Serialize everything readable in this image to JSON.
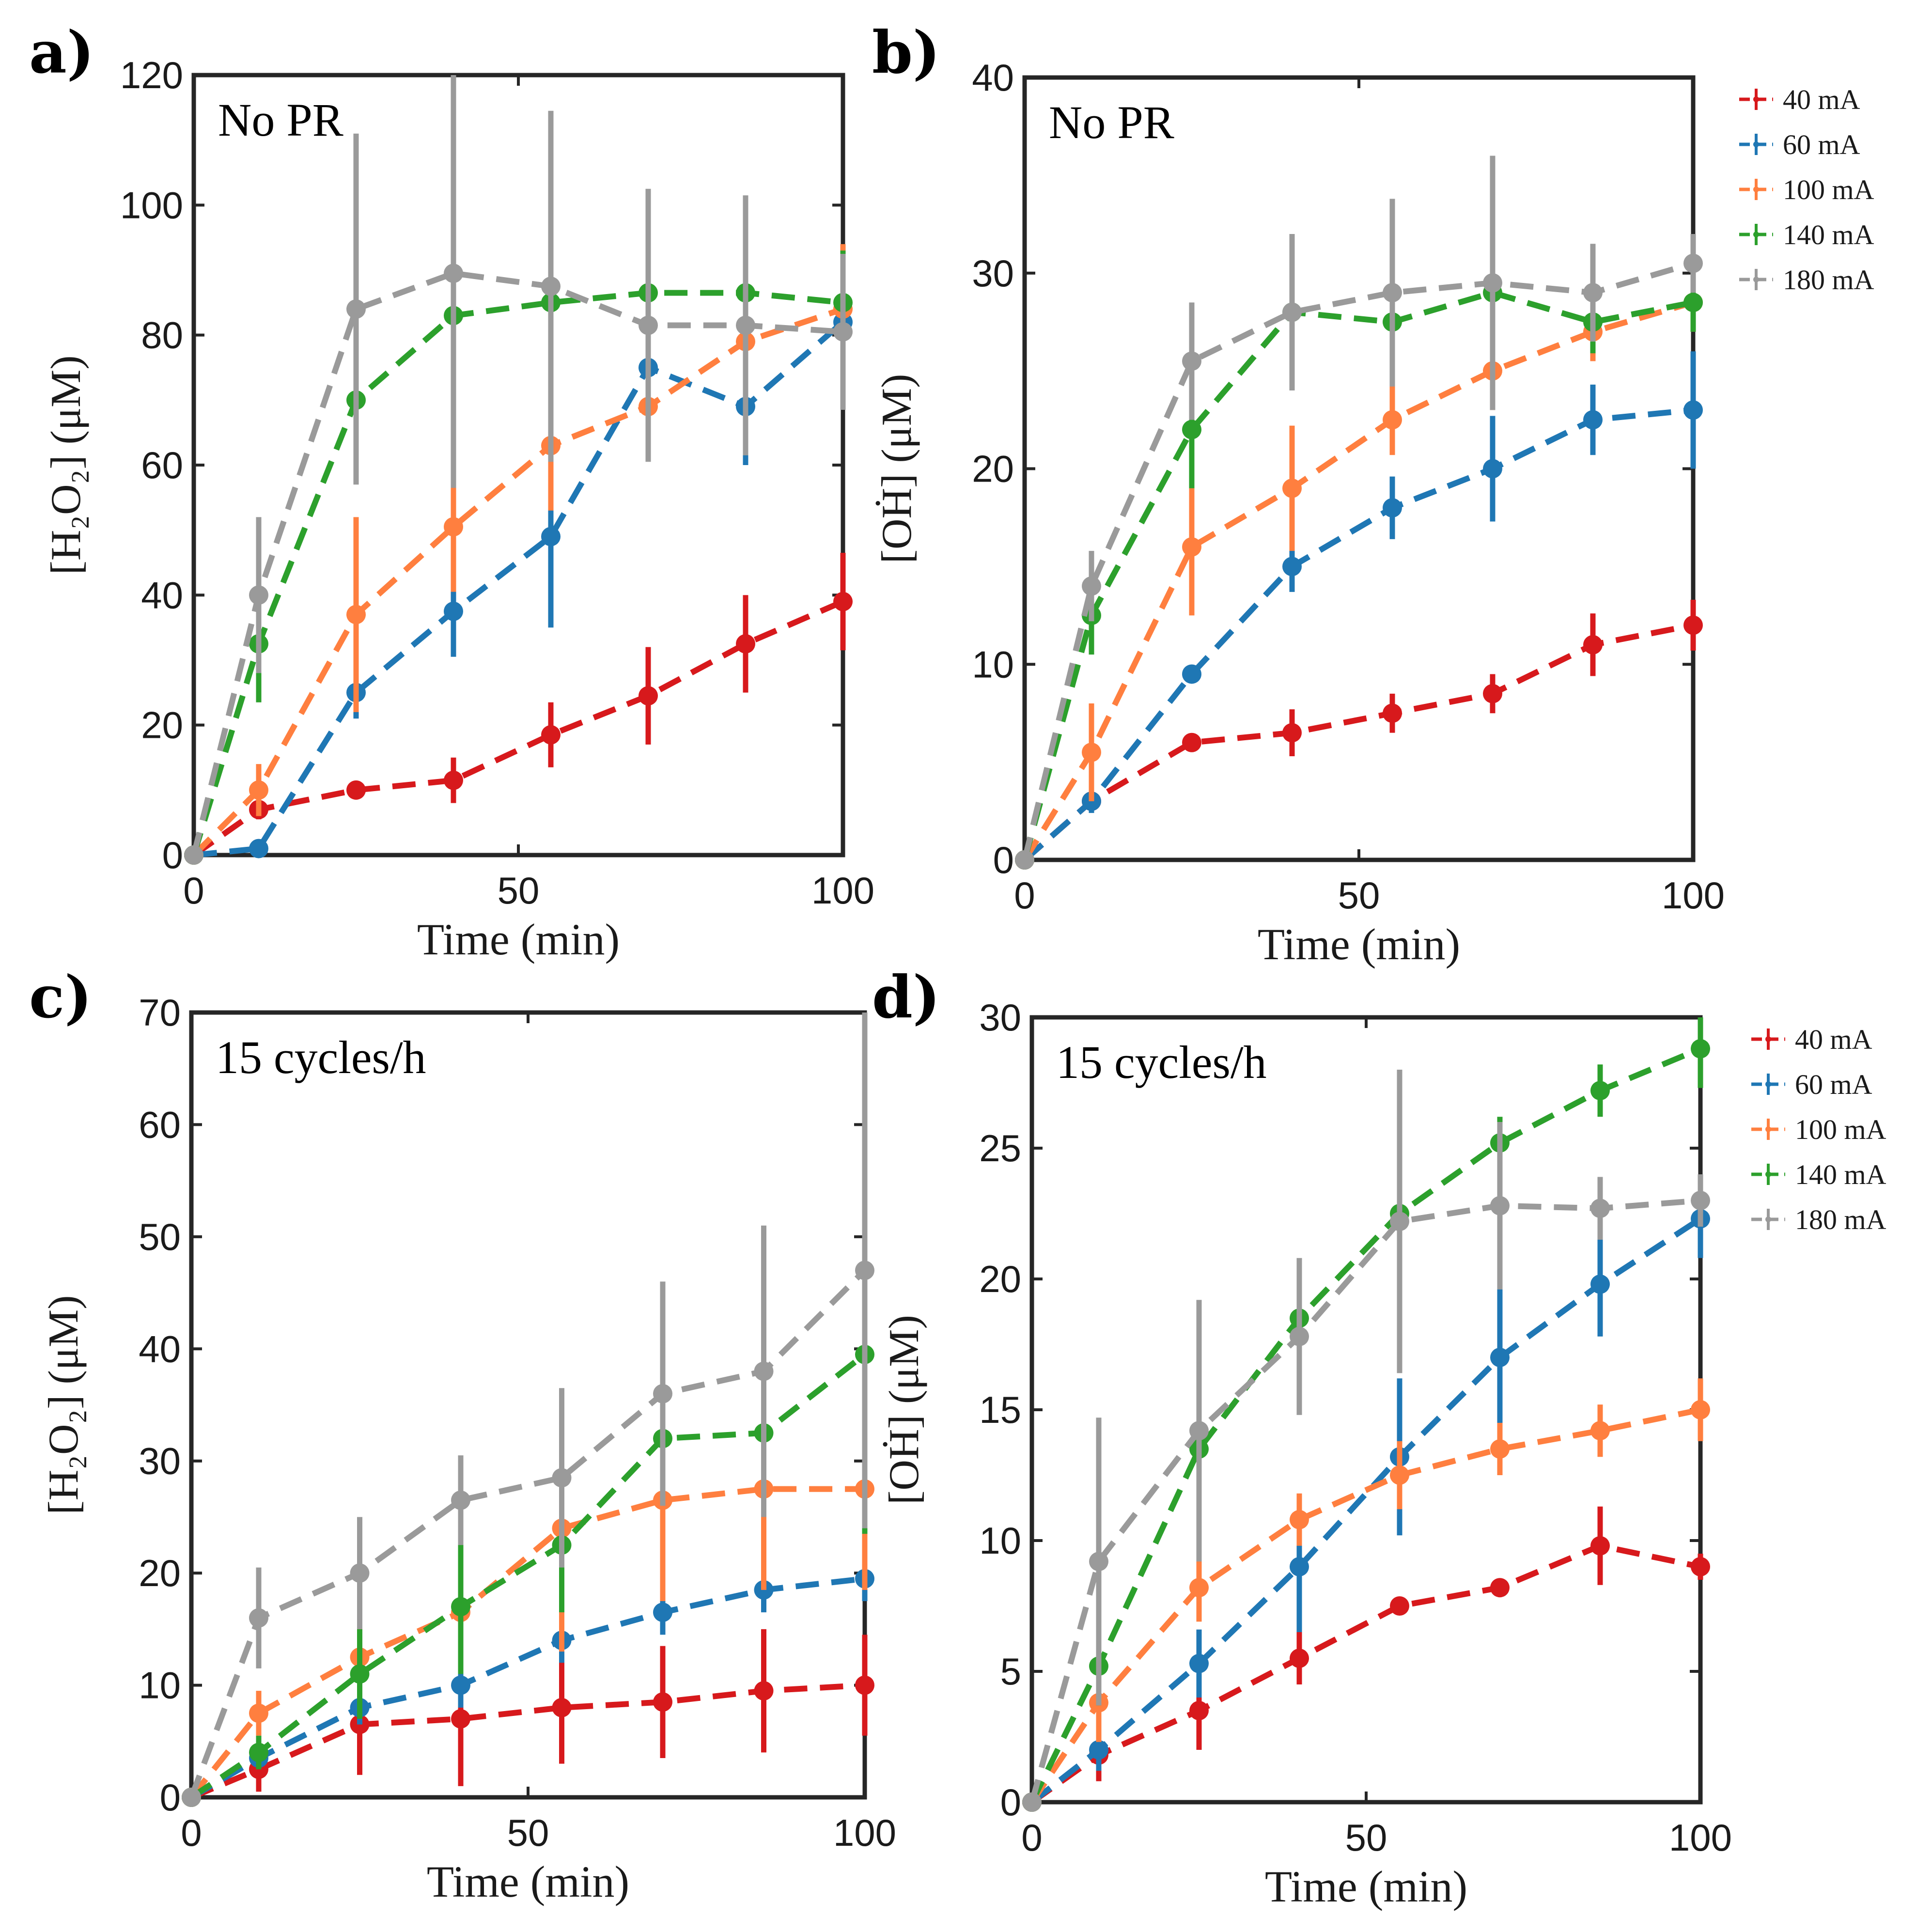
{
  "legend_entries": [
    "40 mA",
    "60 mA",
    "100 mA",
    "140 mA",
    "180 mA"
  ],
  "series_colors": {
    "40 mA": "#d7191c",
    "60 mA": "#1f77b4",
    "100 mA": "#ff7f3f",
    "140 mA": "#2ca02c",
    "180 mA": "#9a9a9a"
  },
  "chart_data": [
    {
      "type": "line",
      "panel": "a)",
      "annotation": "No PR",
      "xlabel": "Time (min)",
      "ylabel": "[H₂O₂] (μM)",
      "xlim": [
        0,
        100
      ],
      "ylim": [
        0,
        120
      ],
      "xticks": [
        0,
        50,
        100
      ],
      "yticks": [
        0,
        20,
        40,
        60,
        80,
        100,
        120
      ],
      "x": [
        0,
        10,
        25,
        40,
        55,
        70,
        85,
        100
      ],
      "series": [
        {
          "name": "40 mA",
          "values": [
            0,
            7,
            10,
            11.5,
            18.5,
            24.5,
            32.5,
            39
          ],
          "errors": [
            0,
            1.5,
            1,
            3.5,
            5,
            7.5,
            7.5,
            7.5
          ]
        },
        {
          "name": "60 mA",
          "values": [
            0,
            1,
            25,
            37.5,
            49,
            75,
            69,
            82
          ],
          "errors": [
            0,
            0.5,
            4,
            7,
            14,
            2,
            9,
            3
          ]
        },
        {
          "name": "100 mA",
          "values": [
            0,
            10,
            37,
            50.5,
            63,
            69,
            79,
            84
          ],
          "errors": [
            0,
            4,
            15,
            10,
            10,
            8,
            7,
            10
          ]
        },
        {
          "name": "140 mA",
          "values": [
            0,
            32.5,
            70,
            83,
            85,
            86.5,
            86.5,
            85
          ],
          "errors": [
            0,
            9,
            8,
            8,
            7,
            8,
            7,
            8
          ]
        },
        {
          "name": "180 mA",
          "values": [
            0,
            40,
            84,
            89.5,
            87.5,
            81.5,
            81.5,
            80.5
          ],
          "errors": [
            0,
            12,
            27,
            33,
            27,
            21,
            20,
            12
          ]
        }
      ]
    },
    {
      "type": "line",
      "panel": "b)",
      "annotation": "No PR",
      "xlabel": "Time (min)",
      "ylabel": "[OḢ] (μM)",
      "xlim": [
        0,
        100
      ],
      "ylim": [
        0,
        40
      ],
      "xticks": [
        0,
        50,
        100
      ],
      "yticks": [
        0,
        10,
        20,
        30,
        40
      ],
      "x": [
        0,
        10,
        25,
        40,
        55,
        70,
        85,
        100
      ],
      "series": [
        {
          "name": "40 mA",
          "values": [
            0,
            3,
            6,
            6.5,
            7.5,
            8.5,
            11,
            12
          ],
          "errors": [
            0,
            0.5,
            0.3,
            1.2,
            1,
            1,
            1.6,
            1.3
          ]
        },
        {
          "name": "60 mA",
          "values": [
            0,
            3,
            9.5,
            15,
            18,
            20,
            22.5,
            23
          ],
          "errors": [
            0,
            0.6,
            0.3,
            1.3,
            1.6,
            2.7,
            1.8,
            3
          ]
        },
        {
          "name": "100 mA",
          "values": [
            0,
            5.5,
            16,
            19,
            22.5,
            25,
            27,
            28.5
          ],
          "errors": [
            0,
            2.5,
            3.5,
            3.2,
            1.8,
            2,
            1.5,
            1.5
          ]
        },
        {
          "name": "140 mA",
          "values": [
            0,
            12.5,
            22,
            28,
            27.5,
            29,
            27.5,
            28.5
          ],
          "errors": [
            0,
            2,
            3,
            2,
            1.8,
            2,
            1.6,
            1.5
          ]
        },
        {
          "name": "180 mA",
          "values": [
            0,
            14,
            25.5,
            28,
            29,
            29.5,
            29,
            30.5
          ],
          "errors": [
            0,
            1.8,
            3,
            4,
            4.8,
            6.5,
            2.5,
            1.5
          ]
        }
      ]
    },
    {
      "type": "line",
      "panel": "c)",
      "annotation": "15 cycles/h",
      "xlabel": "Time (min)",
      "ylabel": "[H₂O₂] (μM)",
      "xlim": [
        0,
        100
      ],
      "ylim": [
        0,
        70
      ],
      "xticks": [
        0,
        50,
        100
      ],
      "yticks": [
        0,
        10,
        20,
        30,
        40,
        50,
        60,
        70
      ],
      "x": [
        0,
        10,
        25,
        40,
        55,
        70,
        85,
        100
      ],
      "series": [
        {
          "name": "40 mA",
          "values": [
            0,
            2.5,
            6.5,
            7,
            8,
            8.5,
            9.5,
            10
          ],
          "errors": [
            0,
            2,
            4.5,
            6,
            5,
            5,
            5.5,
            4.5
          ]
        },
        {
          "name": "60 mA",
          "values": [
            0,
            3.5,
            8,
            10,
            14,
            16.5,
            18.5,
            19.5
          ],
          "errors": [
            0,
            1,
            1.5,
            2,
            2,
            2,
            2,
            2
          ]
        },
        {
          "name": "100 mA",
          "values": [
            0,
            7.5,
            12.5,
            16.5,
            24,
            26.5,
            27.5,
            27.5
          ],
          "errors": [
            0,
            2,
            3,
            4,
            11,
            9,
            9,
            9
          ]
        },
        {
          "name": "140 mA",
          "values": [
            0,
            4,
            11,
            17,
            22.5,
            32,
            32.5,
            39.5
          ],
          "errors": [
            0,
            1.5,
            4,
            6,
            6,
            3,
            3,
            16
          ]
        },
        {
          "name": "180 mA",
          "values": [
            0,
            16,
            20,
            26.5,
            28.5,
            36,
            38,
            47
          ],
          "errors": [
            0,
            4.5,
            5,
            4,
            8,
            10,
            13,
            23
          ]
        }
      ]
    },
    {
      "type": "line",
      "panel": "d)",
      "annotation": "15 cycles/h",
      "xlabel": "Time (min)",
      "ylabel": "[OḢ] (μM)",
      "xlim": [
        0,
        100
      ],
      "ylim": [
        0,
        30
      ],
      "xticks": [
        0,
        50,
        100
      ],
      "yticks": [
        0,
        5,
        10,
        15,
        20,
        25,
        30
      ],
      "x": [
        0,
        10,
        25,
        40,
        55,
        70,
        85,
        100
      ],
      "series": [
        {
          "name": "40 mA",
          "values": [
            0,
            1.8,
            3.5,
            5.5,
            7.5,
            8.2,
            9.8,
            9
          ],
          "errors": [
            0,
            1,
            1.5,
            1,
            0.3,
            0.3,
            1.5,
            0.5
          ]
        },
        {
          "name": "60 mA",
          "values": [
            0,
            2,
            5.3,
            9,
            13.2,
            17,
            19.8,
            22.3
          ],
          "errors": [
            0,
            0.8,
            1.3,
            2.5,
            3,
            3,
            2,
            1.5
          ]
        },
        {
          "name": "100 mA",
          "values": [
            0,
            3.8,
            8.2,
            10.8,
            12.5,
            13.5,
            14.2,
            15
          ],
          "errors": [
            0,
            1.5,
            1.3,
            1,
            1.3,
            1,
            1,
            1.2
          ]
        },
        {
          "name": "140 mA",
          "values": [
            0,
            5.2,
            13.5,
            18.5,
            22.5,
            25.2,
            27.2,
            28.8
          ],
          "errors": [
            0,
            1.5,
            2.5,
            2,
            2,
            1,
            1,
            1.5
          ]
        },
        {
          "name": "180 mA",
          "values": [
            0,
            9.2,
            14.2,
            17.8,
            22.2,
            22.8,
            22.7,
            23
          ],
          "errors": [
            0,
            5.5,
            5,
            3,
            5.8,
            3.2,
            1.2,
            1
          ]
        }
      ]
    }
  ]
}
